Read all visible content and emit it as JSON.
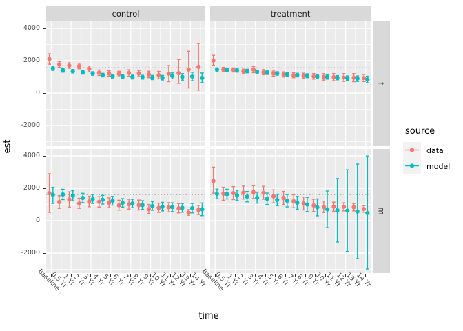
{
  "colors": {
    "data": "#F8766D",
    "model": "#00BFC4",
    "panel_bg": "#EBEBEB",
    "strip_bg": "#D9D9D9",
    "grid": "#FFFFFF",
    "axis_text": "#4D4D4D",
    "strip_text": "#1A1A1A",
    "key_bg": "#F2F2F2",
    "ref_line": "#000000"
  },
  "axis": {
    "x_title": "time",
    "y_title": "est",
    "x_labels": [
      "Baseline",
      "0.5 Yr",
      "1 Yr",
      "2 Yr",
      "3 Yr",
      "4 Yr",
      "5 Yr",
      "6 Yr",
      "7 Yr",
      "8 Yr",
      "9 Yr",
      "10 Yr",
      "11 Yr",
      "12 Yr",
      "13 Yr",
      "14 Yr"
    ],
    "y_ticks": [
      4000,
      2000,
      0,
      -2000
    ]
  },
  "facets": {
    "cols": [
      "control",
      "treatment"
    ],
    "rows": [
      "f",
      "m"
    ]
  },
  "legend": {
    "title": "source",
    "entries": [
      {
        "label": "data",
        "color_key": "data"
      },
      {
        "label": "model",
        "color_key": "model"
      }
    ]
  },
  "chart_data": {
    "type": "pointrange",
    "title": "",
    "xlabel": "time",
    "ylabel": "est",
    "ylim": [
      -3250,
      4430
    ],
    "grid": true,
    "legend_position": "right",
    "x": [
      "Baseline",
      "0.5 Yr",
      "1 Yr",
      "2 Yr",
      "3 Yr",
      "4 Yr",
      "5 Yr",
      "6 Yr",
      "7 Yr",
      "8 Yr",
      "9 Yr",
      "10 Yr",
      "11 Yr",
      "12 Yr",
      "13 Yr",
      "14 Yr"
    ],
    "ref_line": {
      "f": 1560,
      "m": 1630
    },
    "panels": [
      {
        "col": "control",
        "row": "f",
        "series": [
          {
            "name": "data",
            "est": [
              2100,
              1770,
              1700,
              1670,
              1490,
              1260,
              1210,
              1180,
              1240,
              1210,
              1150,
              1110,
              1200,
              1230,
              1450,
              1620
            ],
            "lo": [
              1780,
              1590,
              1530,
              1500,
              1310,
              1090,
              1040,
              1010,
              1040,
              1020,
              950,
              880,
              700,
              600,
              320,
              180
            ],
            "hi": [
              2420,
              1950,
              1870,
              1840,
              1670,
              1430,
              1380,
              1350,
              1440,
              1400,
              1350,
              1340,
              1700,
              2080,
              2580,
              3060
            ]
          },
          {
            "name": "model",
            "est": [
              1530,
              1400,
              1350,
              1280,
              1210,
              1110,
              1040,
              1010,
              990,
              980,
              960,
              950,
              1060,
              1000,
              1020,
              940
            ],
            "lo": [
              1400,
              1290,
              1240,
              1170,
              1100,
              1000,
              930,
              890,
              870,
              860,
              830,
              810,
              880,
              800,
              760,
              640
            ],
            "hi": [
              1660,
              1510,
              1460,
              1390,
              1320,
              1220,
              1150,
              1130,
              1110,
              1100,
              1090,
              1090,
              1240,
              1200,
              1280,
              1240
            ]
          }
        ]
      },
      {
        "col": "treatment",
        "row": "f",
        "series": [
          {
            "name": "data",
            "est": [
              2010,
              1460,
              1430,
              1340,
              1450,
              1290,
              1200,
              1150,
              1100,
              1070,
              1030,
              1000,
              980,
              960,
              950,
              930
            ],
            "lo": [
              1720,
              1330,
              1300,
              1200,
              1260,
              1130,
              1040,
              990,
              950,
              910,
              860,
              800,
              760,
              720,
              700,
              710
            ],
            "hi": [
              2330,
              1590,
              1560,
              1480,
              1640,
              1450,
              1360,
              1310,
              1250,
              1230,
              1200,
              1200,
              1200,
              1200,
              1200,
              1150
            ]
          },
          {
            "name": "model",
            "est": [
              1450,
              1430,
              1400,
              1360,
              1310,
              1260,
              1210,
              1160,
              1110,
              1070,
              1020,
              990,
              950,
              920,
              890,
              840
            ],
            "lo": [
              1340,
              1320,
              1290,
              1250,
              1200,
              1150,
              1100,
              1050,
              1000,
              950,
              900,
              860,
              820,
              780,
              720,
              640
            ],
            "hi": [
              1560,
              1540,
              1510,
              1470,
              1420,
              1370,
              1320,
              1270,
              1220,
              1190,
              1140,
              1120,
              1080,
              1060,
              1060,
              1040
            ]
          }
        ]
      },
      {
        "col": "control",
        "row": "m",
        "series": [
          {
            "name": "data",
            "est": [
              1700,
              1150,
              1310,
              1060,
              1180,
              1160,
              1100,
              950,
              1010,
              960,
              710,
              790,
              820,
              760,
              500,
              660
            ],
            "lo": [
              510,
              760,
              830,
              760,
              860,
              840,
              800,
              650,
              710,
              660,
              430,
              510,
              540,
              480,
              330,
              380
            ],
            "hi": [
              2890,
              1540,
              1780,
              1380,
              1510,
              1480,
              1410,
              1260,
              1320,
              1270,
              1000,
              1080,
              1110,
              1050,
              680,
              940
            ]
          },
          {
            "name": "model",
            "est": [
              1600,
              1620,
              1540,
              1400,
              1330,
              1290,
              1230,
              1100,
              1060,
              960,
              900,
              860,
              830,
              790,
              770,
              700
            ],
            "lo": [
              1060,
              1300,
              1230,
              1110,
              1060,
              1020,
              960,
              840,
              800,
              700,
              640,
              600,
              560,
              520,
              480,
              310
            ],
            "hi": [
              2060,
              1940,
              1850,
              1690,
              1610,
              1560,
              1500,
              1360,
              1320,
              1230,
              1170,
              1130,
              1100,
              1060,
              1060,
              1090
            ]
          }
        ]
      },
      {
        "col": "treatment",
        "row": "m",
        "series": [
          {
            "name": "data",
            "est": [
              2450,
              1660,
              1700,
              1730,
              1760,
              1720,
              1500,
              1400,
              1200,
              1060,
              940,
              850,
              860,
              850,
              830,
              720
            ],
            "lo": [
              1700,
              1260,
              1300,
              1330,
              1360,
              1320,
              1100,
              1000,
              800,
              660,
              560,
              500,
              580,
              600,
              600,
              520
            ],
            "hi": [
              3300,
              2060,
              2100,
              2130,
              2160,
              2120,
              1900,
              1800,
              1600,
              1460,
              1320,
              1200,
              1140,
              1100,
              1060,
              920
            ]
          },
          {
            "name": "model",
            "est": [
              1650,
              1640,
              1560,
              1480,
              1420,
              1350,
              1280,
              1230,
              1100,
              1000,
              820,
              700,
              640,
              620,
              560,
              470
            ],
            "lo": [
              1350,
              1340,
              1250,
              1160,
              1080,
              1000,
              920,
              850,
              700,
              560,
              300,
              -430,
              -1320,
              -1900,
              -2340,
              -2980
            ],
            "hi": [
              1950,
              1940,
              1870,
              1800,
              1760,
              1700,
              1640,
              1610,
              1500,
              1440,
              1340,
              1830,
              2600,
              3140,
              3490,
              3990
            ]
          }
        ]
      }
    ]
  }
}
